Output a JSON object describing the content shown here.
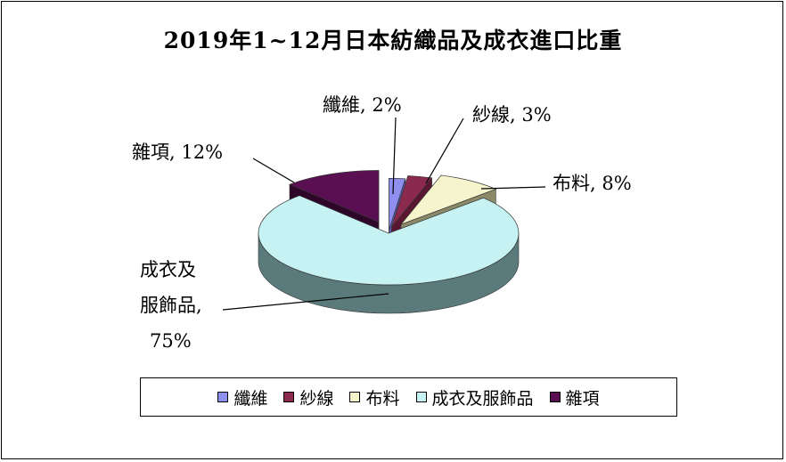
{
  "chart_data": {
    "type": "pie",
    "title": "2019年1~12月日本紡織品及成衣進口比重",
    "slices": [
      {
        "name": "纖維",
        "value": 2,
        "label": "纖維, 2%",
        "color": "#8f8fef",
        "side": "#5a5ab0"
      },
      {
        "name": "紗線",
        "value": 3,
        "label": "紗線, 3%",
        "color": "#8c2a4e",
        "side": "#5a1630"
      },
      {
        "name": "布料",
        "value": 8,
        "label": "布料, 8%",
        "color": "#f6f4cc",
        "side": "#8a8a6a"
      },
      {
        "name": "成衣及服飾品",
        "value": 75,
        "label_lines": [
          "成衣及",
          "服飾品,",
          "75%"
        ],
        "color": "#c6f2f4",
        "side": "#5a7a7c"
      },
      {
        "name": "雜項",
        "value": 12,
        "label": "雜項, 12%",
        "color": "#5a0f52",
        "side": "#2e0629"
      }
    ],
    "legend": [
      "纖維",
      "紗線",
      "布料",
      "成衣及服飾品",
      "雜項"
    ],
    "legend_position": "bottom"
  }
}
